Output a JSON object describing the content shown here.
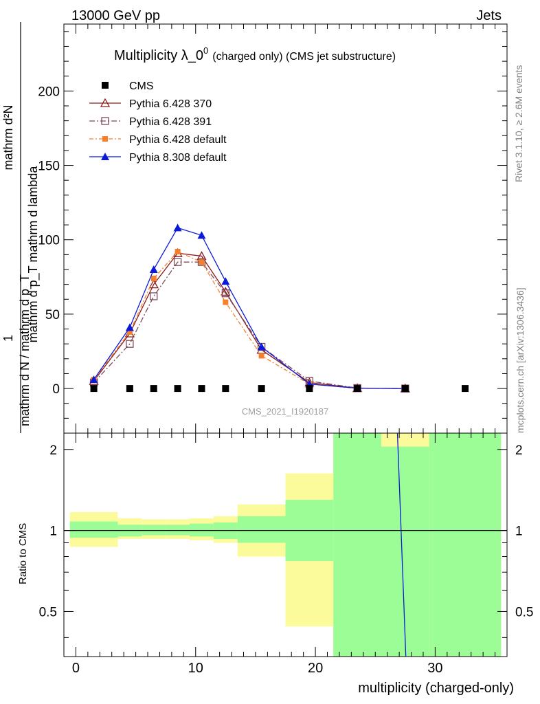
{
  "header": {
    "left": "13000 GeV pp",
    "right": "Jets"
  },
  "side_labels": {
    "rivet": "Rivet 3.1.10, ≥ 2.6M events",
    "mcplots": "mcplots.cern.ch [arXiv:1306.3436]"
  },
  "chart_data": [
    {
      "type": "line",
      "title": "Multiplicity λ_0⁰",
      "title_main": "Multiplicity λ_0",
      "title_sup": "0",
      "title_small": "(charged only) (CMS jet substructure)",
      "watermark": "CMS_2021_I1920187",
      "ylabel_upper": "mathrm d²N",
      "ylabel_mid": "mathrm d p_T mathrm d lambda",
      "ylabel_one": "1",
      "ylabel_lower": "mathrm d N / mathrm d p_T",
      "ylim": [
        -30,
        245
      ],
      "yticks": [
        0,
        50,
        100,
        150,
        200
      ],
      "xlim": [
        -1,
        36
      ],
      "grid": false,
      "legend_position": "top-left",
      "series": [
        {
          "name": "CMS",
          "color": "#000000",
          "marker": "square",
          "x": [
            1.5,
            4.5,
            6.5,
            8.5,
            10.5,
            12.5,
            15.5,
            19.5,
            23.5,
            27.5,
            32.5
          ],
          "y": [
            0,
            0,
            0,
            0,
            0,
            0,
            0,
            0,
            0,
            0,
            0
          ]
        },
        {
          "name": "Pythia 6.428 370",
          "color": "#8b1a1a",
          "marker": "triangle-open",
          "dash": "",
          "x": [
            1.5,
            4.5,
            6.5,
            8.5,
            10.5,
            12.5,
            15.5,
            19.5,
            23.5,
            27.5
          ],
          "y": [
            5,
            37,
            70,
            91,
            89,
            65,
            26,
            4,
            0.2,
            0
          ]
        },
        {
          "name": "Pythia 6.428 391",
          "color": "#7b4a5a",
          "marker": "square-open",
          "dash": "8,3,2,3",
          "x": [
            1.5,
            4.5,
            6.5,
            8.5,
            10.5,
            12.5,
            15.5,
            19.5,
            23.5,
            27.5
          ],
          "y": [
            4,
            30,
            62,
            85,
            85,
            64,
            28,
            5,
            0.3,
            0
          ]
        },
        {
          "name": "Pythia 6.428 default",
          "color": "#f57f2a",
          "marker": "square-filled",
          "dash": "6,3,2,3",
          "x": [
            1.5,
            4.5,
            6.5,
            8.5,
            10.5,
            12.5,
            15.5,
            19.5,
            23.5,
            27.5
          ],
          "y": [
            6,
            38,
            74,
            92,
            85,
            58,
            22,
            3,
            0.1,
            0
          ]
        },
        {
          "name": "Pythia 8.308 default",
          "color": "#0b1ad6",
          "marker": "triangle-filled",
          "dash": "",
          "x": [
            1.5,
            4.5,
            6.5,
            8.5,
            10.5,
            12.5,
            15.5,
            19.5,
            23.5,
            27.5
          ],
          "y": [
            6,
            41,
            80,
            108,
            103,
            72,
            28,
            3,
            0.2,
            0
          ]
        }
      ]
    },
    {
      "type": "area",
      "ylabel": "Ratio to CMS",
      "xlabel": "multiplicity (charged-only)",
      "xlim": [
        -1,
        36
      ],
      "xticks": [
        0,
        10,
        20,
        30
      ],
      "ylim": [
        0.34,
        2.3
      ],
      "yticks": [
        0.5,
        1,
        2
      ],
      "yticklabels": [
        "0.5",
        "1",
        "2"
      ],
      "log_y": true,
      "reference_line": 1,
      "bands": [
        {
          "x_lo": -0.5,
          "x_hi": 3.5,
          "inner": [
            0.94,
            1.08
          ],
          "outer": [
            0.87,
            1.17
          ]
        },
        {
          "x_lo": 3.5,
          "x_hi": 5.5,
          "inner": [
            0.95,
            1.05
          ],
          "outer": [
            0.93,
            1.11
          ]
        },
        {
          "x_lo": 5.5,
          "x_hi": 7.5,
          "inner": [
            0.96,
            1.05
          ],
          "outer": [
            0.93,
            1.1
          ]
        },
        {
          "x_lo": 7.5,
          "x_hi": 9.5,
          "inner": [
            0.96,
            1.05
          ],
          "outer": [
            0.93,
            1.1
          ]
        },
        {
          "x_lo": 9.5,
          "x_hi": 11.5,
          "inner": [
            0.95,
            1.06
          ],
          "outer": [
            0.92,
            1.11
          ]
        },
        {
          "x_lo": 11.5,
          "x_hi": 13.5,
          "inner": [
            0.93,
            1.07
          ],
          "outer": [
            0.9,
            1.13
          ]
        },
        {
          "x_lo": 13.5,
          "x_hi": 17.5,
          "inner": [
            0.9,
            1.13
          ],
          "outer": [
            0.8,
            1.25
          ]
        },
        {
          "x_lo": 17.5,
          "x_hi": 21.5,
          "inner": [
            0.77,
            1.3
          ],
          "outer": [
            0.44,
            1.63
          ]
        },
        {
          "x_lo": 21.5,
          "x_hi": 25.5,
          "inner": [
            0.3,
            2.3
          ],
          "outer": [
            0.3,
            2.3
          ]
        },
        {
          "x_lo": 25.5,
          "x_hi": 29.5,
          "inner": [
            0.3,
            2.05
          ],
          "outer": [
            0.3,
            2.3
          ]
        },
        {
          "x_lo": 29.5,
          "x_hi": 35.5,
          "inner": [
            0.3,
            2.3
          ],
          "outer": [
            0.3,
            2.3
          ]
        }
      ],
      "ratio_line": {
        "name": "Pythia 8.308 default",
        "color": "#0b1ad6",
        "points": [
          [
            26.85,
            2.3
          ],
          [
            27.55,
            0.34
          ]
        ]
      }
    }
  ],
  "colors": {
    "band_inner": "#9cfc95",
    "band_outer": "#fbfb9c",
    "side_text": "#808080",
    "watermark": "#a0a0a0"
  }
}
